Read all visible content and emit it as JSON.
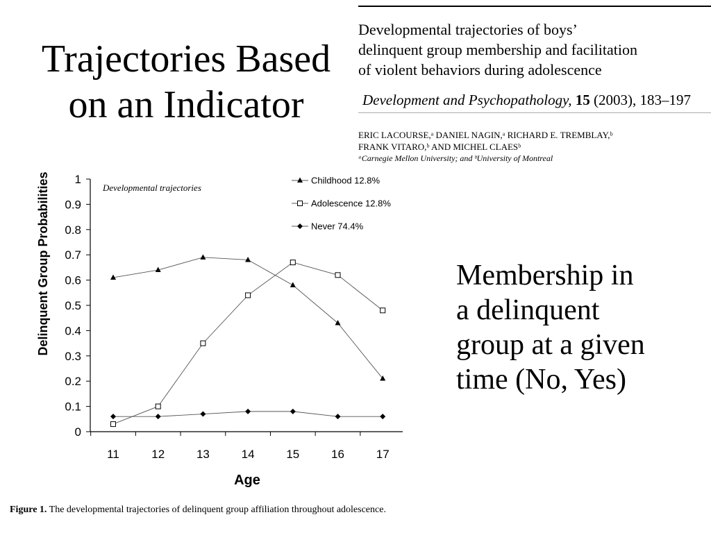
{
  "slide": {
    "title_line1": "Trajectories Based",
    "title_line2": "on an Indicator",
    "side_text": [
      "Membership in",
      "a delinquent",
      "group at a given",
      "time (No, Yes)"
    ]
  },
  "paper": {
    "title_lines": [
      "Developmental trajectories of boys’",
      "delinquent group membership and facilitation",
      "of violent behaviors during adolescence"
    ],
    "journal_name": "Development and Psychopathology,",
    "journal_volume": "15",
    "journal_rest": "(2003), 183–197",
    "author_lines": [
      "ERIC LACOURSE,ᵃ DANIEL NAGIN,ᵃ RICHARD E. TREMBLAY,ᵇ",
      "FRANK VITARO,ᵇ AND MICHEL CLAESᵇ"
    ],
    "affiliation": "ᵃCarnegie Mellon University; and ᵇUniversity of Montreal"
  },
  "figure": {
    "caption_label": "Figure 1.",
    "caption_text": "The developmental trajectories of delinquent group affiliation throughout adolescence."
  },
  "chart_data": {
    "type": "line",
    "title": "Developmental trajectories",
    "xlabel": "Age",
    "ylabel": "Delinquent Group Probabilities",
    "x": [
      11,
      12,
      13,
      14,
      15,
      16,
      17
    ],
    "ylim": [
      0,
      1
    ],
    "yticks": [
      "0",
      "0.1",
      "0.2",
      "0.3",
      "0.4",
      "0.5",
      "0.6",
      "0.7",
      "0.8",
      "0.9",
      "1"
    ],
    "grid": false,
    "legend_position": "top-right",
    "series": [
      {
        "name": "Childhood 12.8%",
        "marker": "triangle-filled",
        "values": [
          0.61,
          0.64,
          0.69,
          0.68,
          0.58,
          0.43,
          0.21
        ]
      },
      {
        "name": "Adolescence 12.8%",
        "marker": "square-open",
        "values": [
          0.03,
          0.1,
          0.35,
          0.54,
          0.67,
          0.62,
          0.48
        ]
      },
      {
        "name": "Never 74.4%",
        "marker": "diamond-filled",
        "values": [
          0.06,
          0.06,
          0.07,
          0.08,
          0.08,
          0.06,
          0.06
        ]
      }
    ]
  }
}
